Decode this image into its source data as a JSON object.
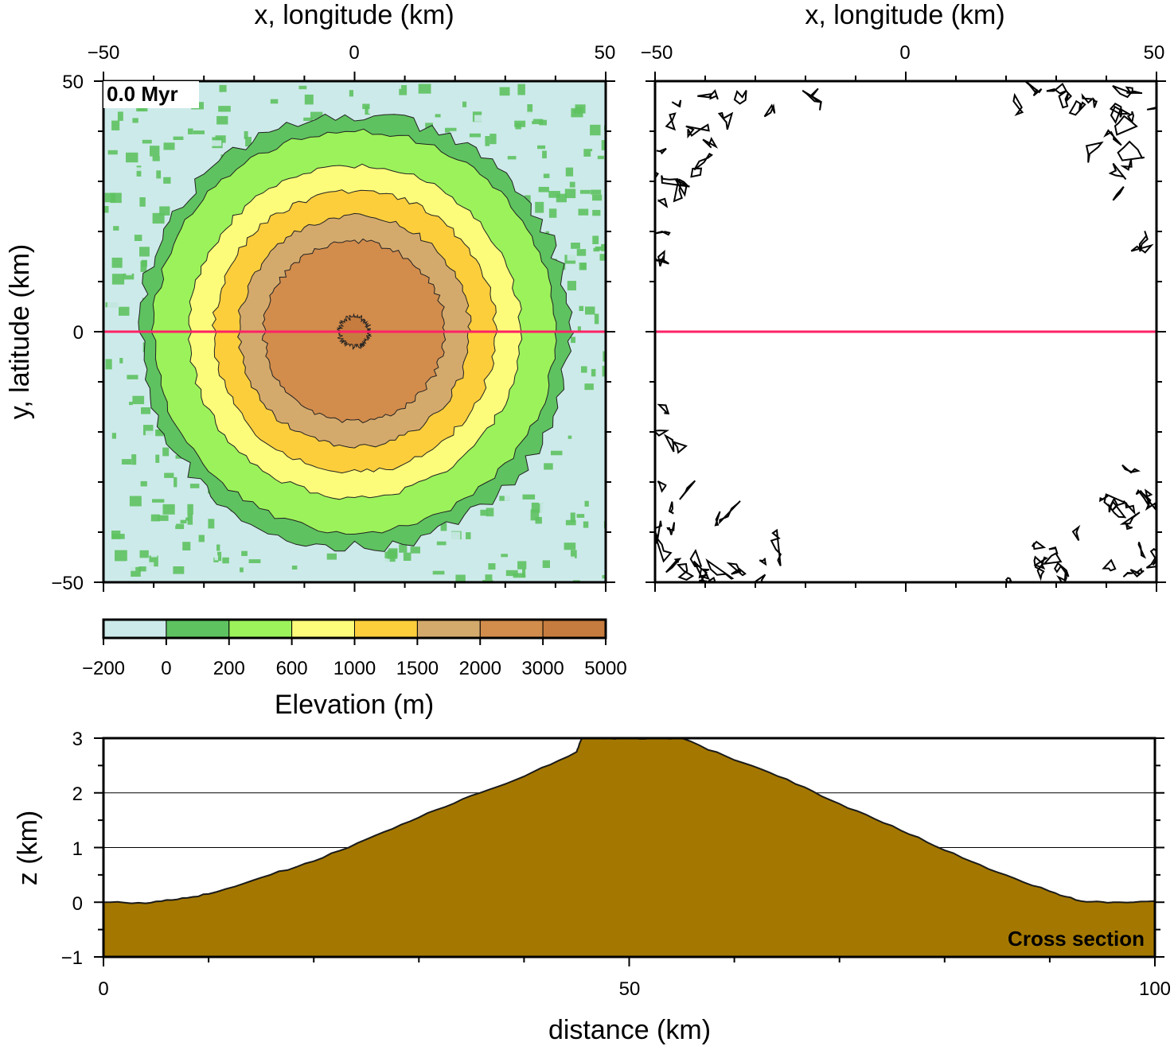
{
  "chart_data": [
    {
      "type": "heatmap",
      "panel": "elevation-map",
      "title": "",
      "xlabel": "x, longitude (km)",
      "ylabel": "y, latitude (km)",
      "xlim": [
        -50,
        50
      ],
      "ylim": [
        -50,
        50
      ],
      "xticks": [
        "−50",
        "0",
        "50"
      ],
      "yticks": [
        "50",
        "0",
        "−50"
      ],
      "annotation": "0.0 Myr",
      "cross_section_line_y": 0,
      "ring_radii_km": [
        43,
        40,
        33,
        28,
        23,
        18,
        3
      ],
      "ring_levels_m": [
        -200,
        0,
        200,
        600,
        1000,
        1500,
        2000,
        3000,
        5000
      ],
      "ring_colors": [
        "#cdeaea",
        "#5ec260",
        "#9cf25a",
        "#fcfc7a",
        "#fcce3c",
        "#d4aa6c",
        "#d28c4c",
        "#c67c3e"
      ],
      "line_color": "#ff2266"
    },
    {
      "type": "heatmap",
      "panel": "contour-map",
      "xlabel": "x, longitude (km)",
      "xlim": [
        -50,
        50
      ],
      "ylim": [
        -50,
        50
      ],
      "xticks": [
        "−50",
        "0",
        "50"
      ],
      "open_region_radius_km": 50
    },
    {
      "type": "bar",
      "panel": "colorbar",
      "label": "Elevation (m)",
      "categories": [
        "−200",
        "0",
        "200",
        "600",
        "1000",
        "1500",
        "2000",
        "3000",
        "5000"
      ],
      "values": [
        -200,
        0,
        200,
        600,
        1000,
        1500,
        2000,
        3000,
        5000
      ],
      "colors": [
        "#cdeaea",
        "#5ec260",
        "#9cf25a",
        "#fcfc7a",
        "#fcce3c",
        "#d4aa6c",
        "#d28c4c",
        "#c67c3e"
      ]
    },
    {
      "type": "area",
      "panel": "cross-section",
      "title": "Cross section",
      "xlabel": "distance (km)",
      "ylabel": "z (km)",
      "xlim": [
        0,
        100
      ],
      "ylim": [
        -1,
        3
      ],
      "xticks": [
        "0",
        "50",
        "100"
      ],
      "yticks": [
        "3",
        "2",
        "1",
        "0",
        "−1"
      ],
      "gridlines_y": [
        1,
        2
      ],
      "fill_color": "#a47800",
      "x": [
        0,
        4,
        7,
        10,
        15,
        20,
        25,
        30,
        35,
        40,
        45,
        45.5,
        48,
        50,
        53,
        55,
        60,
        65,
        70,
        75,
        80,
        85,
        90,
        93,
        96,
        100
      ],
      "y": [
        0,
        -0.02,
        0.05,
        0.15,
        0.45,
        0.75,
        1.15,
        1.55,
        1.95,
        2.3,
        2.75,
        3.0,
        3.0,
        3.0,
        3.0,
        3.0,
        2.6,
        2.25,
        1.8,
        1.4,
        0.95,
        0.55,
        0.2,
        0.02,
        0.0,
        0.02
      ]
    }
  ]
}
